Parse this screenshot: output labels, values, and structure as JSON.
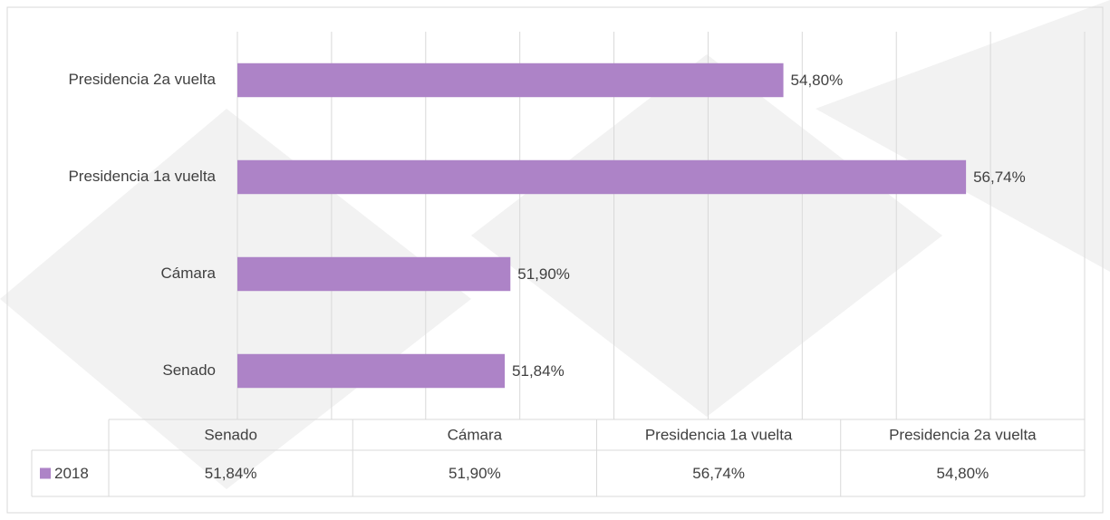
{
  "chart_data": {
    "type": "bar",
    "orientation": "horizontal",
    "categories": [
      "Senado",
      "Cámara",
      "Presidencia 1a vuelta",
      "Presidencia 2a vuelta"
    ],
    "series": [
      {
        "name": "2018",
        "color": "#ad83c7",
        "values": [
          51.84,
          51.9,
          56.74,
          54.8
        ],
        "value_labels": [
          "51,84%",
          "51,90%",
          "56,74%",
          "54,80%"
        ]
      }
    ],
    "xlim": [
      49,
      58
    ],
    "xticks": [
      49,
      50,
      51,
      52,
      53,
      54,
      55,
      56,
      57,
      58
    ],
    "grid": true,
    "data_table": true
  }
}
